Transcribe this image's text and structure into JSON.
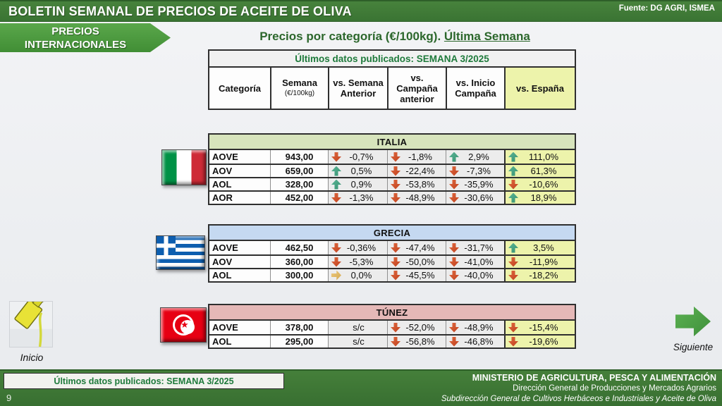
{
  "header": {
    "title": "BOLETIN SEMANAL DE PRECIOS DE ACEITE DE OLIVA",
    "source": "Fuente: DG AGRI, ISMEA"
  },
  "banner": {
    "line1": "PRECIOS",
    "line2": "INTERNACIONALES"
  },
  "page_title": {
    "prefix": "Precios por categoría (€/100kg). ",
    "underlined": "Última Semana"
  },
  "table_header": {
    "published": "Últimos datos publicados: SEMANA 3/2025",
    "columns": [
      {
        "label": "Categoría"
      },
      {
        "label": "Semana",
        "sub": "(€/100kg)"
      },
      {
        "label": "vs. Semana Anterior"
      },
      {
        "label": "vs. Campaña anterior"
      },
      {
        "label": "vs. Inicio Campaña"
      },
      {
        "label": "vs. España"
      }
    ]
  },
  "country_tables": [
    {
      "id": "italia",
      "name": "ITALIA",
      "band_color": "#d7e4bc",
      "rows": [
        {
          "category": "AOVE",
          "price": "943,00",
          "cells": [
            {
              "dir": "down",
              "text": "-0,7%"
            },
            {
              "dir": "down",
              "text": "-1,8%"
            },
            {
              "dir": "up",
              "text": "2,9%"
            },
            {
              "dir": "up",
              "text": "111,0%"
            }
          ]
        },
        {
          "category": "AOV",
          "price": "659,00",
          "cells": [
            {
              "dir": "up",
              "text": "0,5%"
            },
            {
              "dir": "down",
              "text": "-22,4%"
            },
            {
              "dir": "down",
              "text": "-7,3%"
            },
            {
              "dir": "up",
              "text": "61,3%"
            }
          ]
        },
        {
          "category": "AOL",
          "price": "328,00",
          "cells": [
            {
              "dir": "up",
              "text": "0,9%"
            },
            {
              "dir": "down",
              "text": "-53,8%"
            },
            {
              "dir": "down",
              "text": "-35,9%"
            },
            {
              "dir": "down",
              "text": "-10,6%"
            }
          ]
        },
        {
          "category": "AOR",
          "price": "452,00",
          "cells": [
            {
              "dir": "down",
              "text": "-1,3%"
            },
            {
              "dir": "down",
              "text": "-48,9%"
            },
            {
              "dir": "down",
              "text": "-30,6%"
            },
            {
              "dir": "up",
              "text": "18,9%"
            }
          ]
        }
      ]
    },
    {
      "id": "grecia",
      "name": "GRECIA",
      "band_color": "#c5d9f1",
      "rows": [
        {
          "category": "AOVE",
          "price": "462,50",
          "cells": [
            {
              "dir": "down",
              "text": "-0,36%"
            },
            {
              "dir": "down",
              "text": "-47,4%"
            },
            {
              "dir": "down",
              "text": "-31,7%"
            },
            {
              "dir": "up",
              "text": "3,5%"
            }
          ]
        },
        {
          "category": "AOV",
          "price": "360,00",
          "cells": [
            {
              "dir": "down",
              "text": "-5,3%"
            },
            {
              "dir": "down",
              "text": "-50,0%"
            },
            {
              "dir": "down",
              "text": "-41,0%"
            },
            {
              "dir": "down",
              "text": "-11,9%"
            }
          ]
        },
        {
          "category": "AOL",
          "price": "300,00",
          "cells": [
            {
              "dir": "right",
              "text": "0,0%"
            },
            {
              "dir": "down",
              "text": "-45,5%"
            },
            {
              "dir": "down",
              "text": "-40,0%"
            },
            {
              "dir": "down",
              "text": "-18,2%"
            }
          ]
        }
      ]
    },
    {
      "id": "tunez",
      "name": "TÚNEZ",
      "band_color": "#e5b8b7",
      "rows": [
        {
          "category": "AOVE",
          "price": "378,00",
          "cells": [
            {
              "dir": "none",
              "text": "s/c"
            },
            {
              "dir": "down",
              "text": "-52,0%"
            },
            {
              "dir": "down",
              "text": "-48,9%"
            },
            {
              "dir": "down",
              "text": "-15,4%"
            }
          ]
        },
        {
          "category": "AOL",
          "price": "295,00",
          "cells": [
            {
              "dir": "none",
              "text": "s/c"
            },
            {
              "dir": "down",
              "text": "-56,8%"
            },
            {
              "dir": "down",
              "text": "-46,8%"
            },
            {
              "dir": "down",
              "text": "-19,6%"
            }
          ]
        }
      ]
    }
  ],
  "nav": {
    "inicio": "Inicio",
    "siguiente": "Siguiente"
  },
  "footer": {
    "published": "Últimos datos publicados: SEMANA 3/2025",
    "page": "9",
    "ministry": "MINISTERIO DE AGRICULTURA, PESCA Y ALIMENTACIÓN",
    "line2": "Dirección General de Producciones y Mercados Agrarios",
    "line3": "Subdirección General de Cultivos Herbáceos e Industriales y Aceite de Oliva"
  },
  "colors": {
    "bar_green": "#3a7433",
    "banner_green": "#4c9c3e",
    "title_green": "#2c672c",
    "published_green": "#1e7a3b",
    "arrow_down": "#cd4f29",
    "arrow_up": "#3fa183",
    "arrow_flat": "#ddb25f",
    "espana_bg": "#edf3ab",
    "italia_band": "#d7e4bc",
    "grecia_band": "#c5d9f1",
    "tunez_band": "#e5b8b7"
  }
}
